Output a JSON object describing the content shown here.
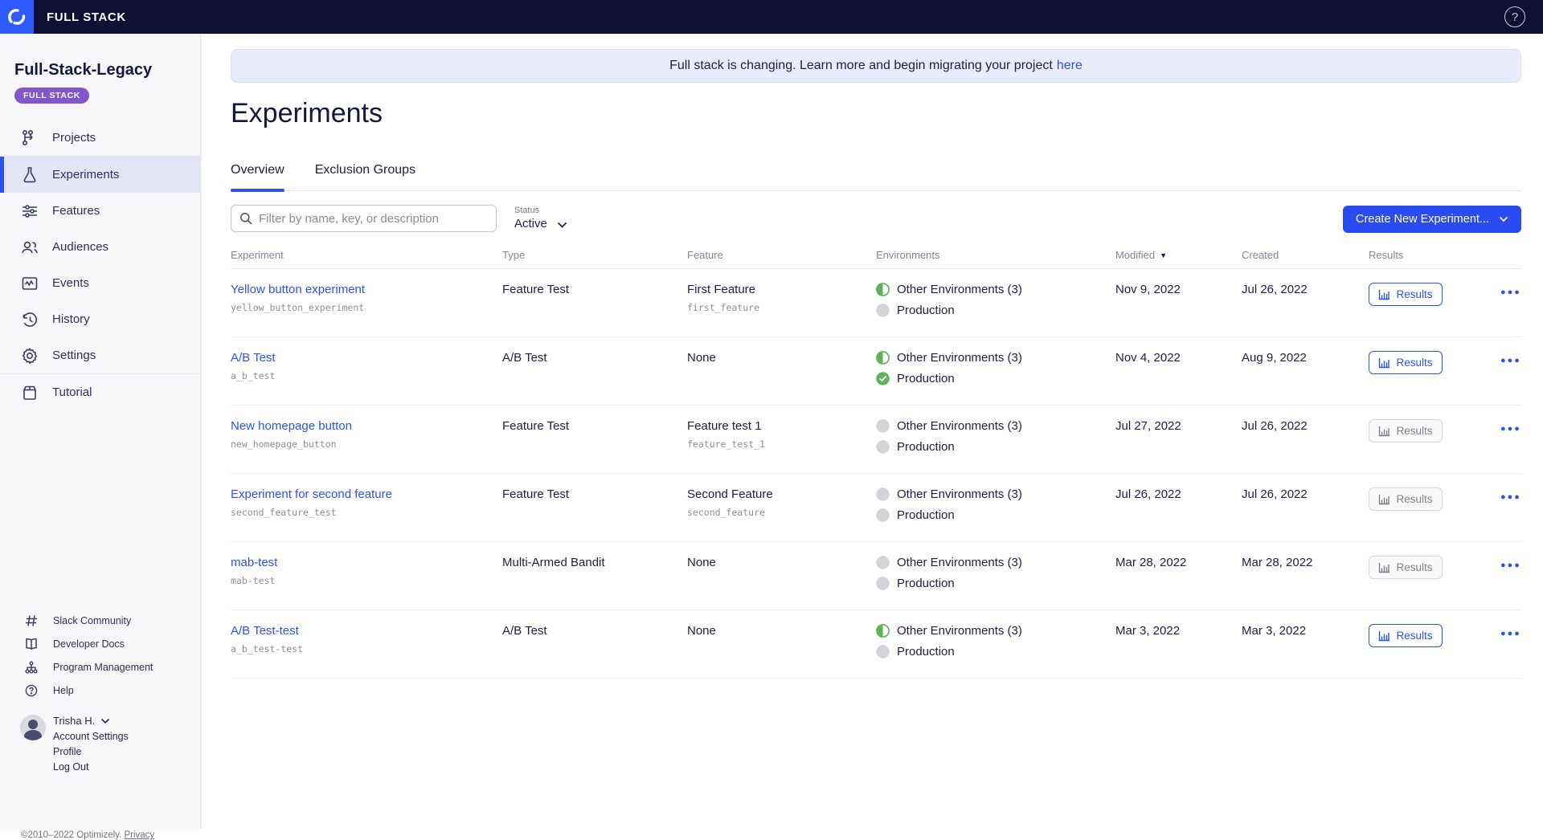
{
  "colors": {
    "accent_blue": "#2c52f3",
    "topbar_navy": "#0f1034",
    "logo_blue": "#2d5bff",
    "badge_purple": "#8456cb",
    "env_green": "#5fb356",
    "env_gray": "#d4d4d8",
    "active_nav_bg": "#e4e6f8",
    "banner_bg": "#e9ecfc"
  },
  "topbar": {
    "brand": "FULL STACK"
  },
  "sidebar": {
    "project_name": "Full-Stack-Legacy",
    "badge": "FULL STACK",
    "nav": [
      {
        "label": "Projects",
        "icon": "projects-icon"
      },
      {
        "label": "Experiments",
        "icon": "experiments-icon",
        "active": true
      },
      {
        "label": "Features",
        "icon": "features-icon"
      },
      {
        "label": "Audiences",
        "icon": "audiences-icon"
      },
      {
        "label": "Events",
        "icon": "events-icon"
      },
      {
        "label": "History",
        "icon": "history-icon"
      },
      {
        "label": "Settings",
        "icon": "settings-icon"
      },
      {
        "label": "Tutorial",
        "icon": "tutorial-icon"
      }
    ],
    "utility": [
      {
        "label": "Slack Community",
        "icon": "hashtag-icon"
      },
      {
        "label": "Developer Docs",
        "icon": "book-icon"
      },
      {
        "label": "Program Management",
        "icon": "org-chart-icon"
      },
      {
        "label": "Help",
        "icon": "question-icon"
      }
    ],
    "user": {
      "name": "Trisha H.",
      "links": [
        "Account Settings",
        "Profile",
        "Log Out"
      ]
    },
    "copyright": "©2010–2022 Optimizely.",
    "privacy": "Privacy"
  },
  "banner": {
    "text": "Full stack is changing. Learn more and begin migrating your project",
    "link": "here"
  },
  "main": {
    "title": "Experiments",
    "tabs": [
      {
        "label": "Overview",
        "active": true
      },
      {
        "label": "Exclusion Groups",
        "active": false
      }
    ],
    "filter_placeholder": "Filter by name, key, or description",
    "status_label": "Status",
    "status_value": "Active",
    "create_button": "Create New Experiment...",
    "table": {
      "headers": {
        "experiment": "Experiment",
        "type": "Type",
        "feature": "Feature",
        "environments": "Environments",
        "modified": "Modified",
        "created": "Created",
        "results": "Results"
      },
      "sorted_by": "Modified",
      "results_label": "Results",
      "rows": [
        {
          "name": "Yellow button experiment",
          "key": "yellow_button_experiment",
          "type": "Feature Test",
          "feature": "First Feature",
          "feature_key": "first_feature",
          "env_other": "Other Environments (3)",
          "env_other_state": "half",
          "env_prod": "Production",
          "env_prod_state": "off",
          "modified": "Nov 9, 2022",
          "created": "Jul 26, 2022",
          "results_enabled": true
        },
        {
          "name": "A/B Test",
          "key": "a_b_test",
          "type": "A/B Test",
          "feature": "None",
          "feature_key": "",
          "env_other": "Other Environments (3)",
          "env_other_state": "half",
          "env_prod": "Production",
          "env_prod_state": "check",
          "modified": "Nov 4, 2022",
          "created": "Aug 9, 2022",
          "results_enabled": true
        },
        {
          "name": "New homepage button",
          "key": "new_homepage_button",
          "type": "Feature Test",
          "feature": "Feature test 1",
          "feature_key": "feature_test_1",
          "env_other": "Other Environments (3)",
          "env_other_state": "off",
          "env_prod": "Production",
          "env_prod_state": "off",
          "modified": "Jul 27, 2022",
          "created": "Jul 26, 2022",
          "results_enabled": false
        },
        {
          "name": "Experiment for second feature",
          "key": "second_feature_test",
          "type": "Feature Test",
          "feature": "Second Feature",
          "feature_key": "second_feature",
          "env_other": "Other Environments (3)",
          "env_other_state": "off",
          "env_prod": "Production",
          "env_prod_state": "off",
          "modified": "Jul 26, 2022",
          "created": "Jul 26, 2022",
          "results_enabled": false
        },
        {
          "name": "mab-test",
          "key": "mab-test",
          "type": "Multi-Armed Bandit",
          "feature": "None",
          "feature_key": "",
          "env_other": "Other Environments (3)",
          "env_other_state": "off",
          "env_prod": "Production",
          "env_prod_state": "off",
          "modified": "Mar 28, 2022",
          "created": "Mar 28, 2022",
          "results_enabled": false
        },
        {
          "name": "A/B Test-test",
          "key": "a_b_test-test",
          "type": "A/B Test",
          "feature": "None",
          "feature_key": "",
          "env_other": "Other Environments (3)",
          "env_other_state": "half",
          "env_prod": "Production",
          "env_prod_state": "off",
          "modified": "Mar 3, 2022",
          "created": "Mar 3, 2022",
          "results_enabled": true
        }
      ]
    }
  }
}
